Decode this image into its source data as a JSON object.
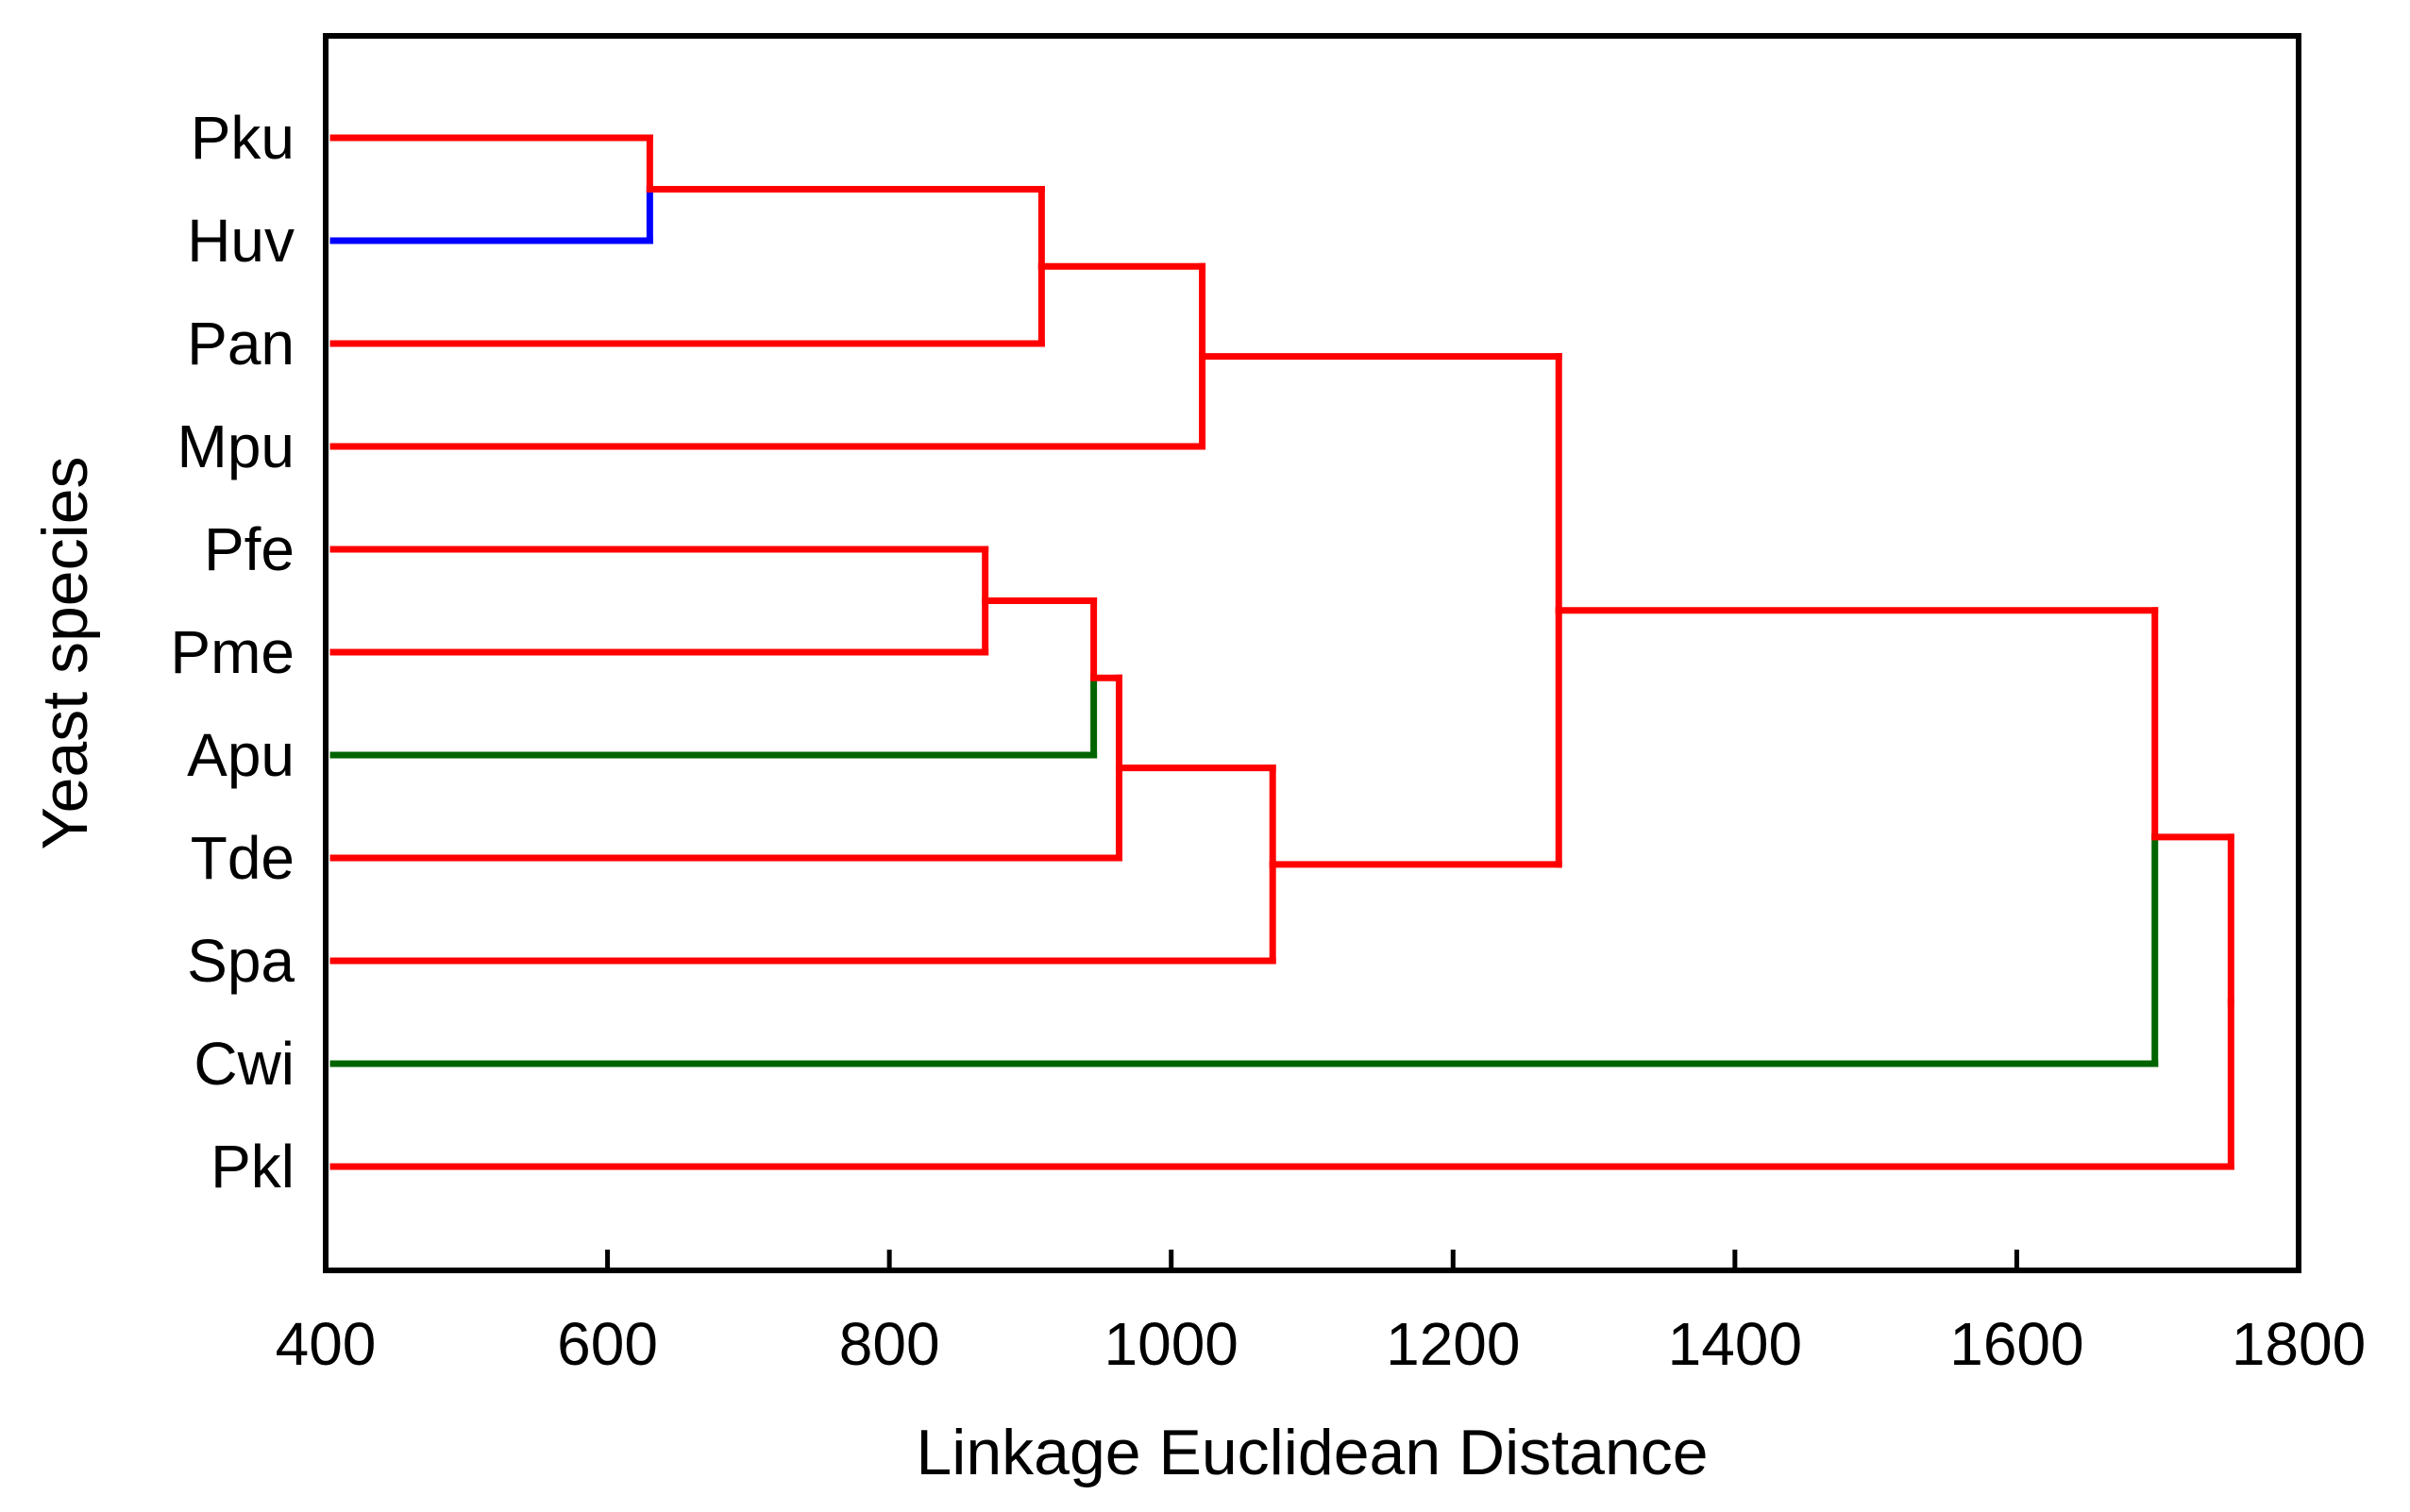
{
  "chart_data": {
    "type": "dendrogram",
    "orientation": "horizontal",
    "xlabel": "Linkage Euclidean Distance",
    "ylabel": "Yeast species",
    "xlim": [
      400,
      1800
    ],
    "xticks": [
      400,
      600,
      800,
      1000,
      1200,
      1400,
      1600,
      1800
    ],
    "leaves": [
      "Pku",
      "Huv",
      "Pan",
      "Mpu",
      "Pfe",
      "Pme",
      "Apu",
      "Tde",
      "Spa",
      "Cwi",
      "Pkl"
    ],
    "colors": {
      "red": "#ff0000",
      "blue": "#0000ff",
      "green": "#006400"
    },
    "merges": [
      {
        "id": "m1",
        "children": [
          "Pku",
          "Huv"
        ],
        "distance": 630
      },
      {
        "id": "m2",
        "children": [
          "Pfe",
          "Pme"
        ],
        "distance": 868
      },
      {
        "id": "m3",
        "children": [
          "m1",
          "Pan"
        ],
        "distance": 908
      },
      {
        "id": "m4",
        "children": [
          "m2",
          "Apu"
        ],
        "distance": 945
      },
      {
        "id": "m5",
        "children": [
          "m4",
          "Tde"
        ],
        "distance": 963
      },
      {
        "id": "m6",
        "children": [
          "m3",
          "Mpu"
        ],
        "distance": 1022
      },
      {
        "id": "m7",
        "children": [
          "m5",
          "Spa"
        ],
        "distance": 1072
      },
      {
        "id": "m8",
        "children": [
          "m6",
          "m7"
        ],
        "distance": 1275
      },
      {
        "id": "m9",
        "children": [
          "m8",
          "Cwi"
        ],
        "distance": 1698
      },
      {
        "id": "m10",
        "children": [
          "m9",
          "Pkl"
        ],
        "distance": 1752
      }
    ],
    "segment_colors": {
      "Pku": "red",
      "Huv": "blue",
      "Pan": "red",
      "Mpu": "red",
      "Pfe": "red",
      "Pme": "red",
      "Apu": "green",
      "Tde": "red",
      "Spa": "red",
      "Cwi": "green",
      "Pkl": "red",
      "m1": "red",
      "m2": "red",
      "m3": "red",
      "m4": "red",
      "m5": "red",
      "m6": "red",
      "m7": "red",
      "m8": "red",
      "m9": "red"
    }
  }
}
